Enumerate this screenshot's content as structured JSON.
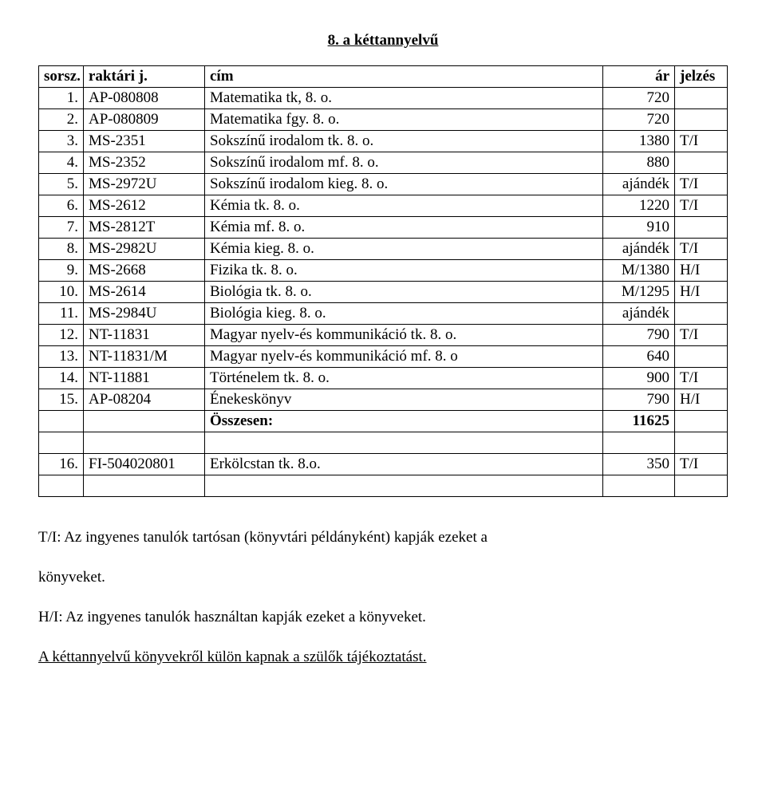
{
  "title": "8. a kéttannyelvű",
  "columns": {
    "sorsz": "sorsz.",
    "raktari": "raktári j.",
    "cim": "cím",
    "ar": "ár",
    "jelzes": "jelzés"
  },
  "rows": [
    {
      "n": "1.",
      "r": "AP-080808",
      "c": "Matematika tk, 8. o.",
      "a": "720",
      "j": ""
    },
    {
      "n": "2.",
      "r": "AP-080809",
      "c": "Matematika fgy. 8. o.",
      "a": "720",
      "j": ""
    },
    {
      "n": "3.",
      "r": "MS-2351",
      "c": "Sokszínű irodalom tk. 8. o.",
      "a": "1380",
      "j": "T/I"
    },
    {
      "n": "4.",
      "r": "MS-2352",
      "c": "Sokszínű irodalom mf. 8. o.",
      "a": "880",
      "j": ""
    },
    {
      "n": "5.",
      "r": "MS-2972U",
      "c": "Sokszínű irodalom kieg. 8. o.",
      "a": "ajándék",
      "j": "T/I"
    },
    {
      "n": "6.",
      "r": "MS-2612",
      "c": "Kémia tk. 8. o.",
      "a": "1220",
      "j": "T/I"
    },
    {
      "n": "7.",
      "r": "MS-2812T",
      "c": "Kémia mf. 8. o.",
      "a": "910",
      "j": ""
    },
    {
      "n": "8.",
      "r": "MS-2982U",
      "c": "Kémia kieg. 8. o.",
      "a": "ajándék",
      "j": "T/I"
    },
    {
      "n": "9.",
      "r": "MS-2668",
      "c": "Fizika tk. 8. o.",
      "a": "M/1380",
      "j": "H/I"
    },
    {
      "n": "10.",
      "r": "MS-2614",
      "c": "Biológia tk. 8. o.",
      "a": "M/1295",
      "j": "H/I"
    },
    {
      "n": "11.",
      "r": "MS-2984U",
      "c": "Biológia kieg. 8. o.",
      "a": "ajándék",
      "j": ""
    },
    {
      "n": "12.",
      "r": "NT-11831",
      "c": "Magyar nyelv-és kommunikáció tk. 8. o.",
      "a": "790",
      "j": "T/I"
    },
    {
      "n": "13.",
      "r": "NT-11831/M",
      "c": "Magyar nyelv-és kommunikáció mf. 8. o",
      "a": "640",
      "j": ""
    },
    {
      "n": "14.",
      "r": "NT-11881",
      "c": "Történelem tk. 8. o.",
      "a": "900",
      "j": "T/I"
    },
    {
      "n": "15.",
      "r": "AP-08204",
      "c": "Énekeskönyv",
      "a": "790",
      "j": "H/I"
    }
  ],
  "summary": {
    "label": "Összesen:",
    "value": "11625"
  },
  "row16": {
    "n": "16.",
    "r": "FI-504020801",
    "c": "Erkölcstan tk. 8.o.",
    "a": "350",
    "j": "T/I"
  },
  "note1a": "T/I: Az ingyenes tanulók tartósan (könyvtári példányként) kapják ezeket a",
  "note1b": "könyveket.",
  "note2": "H/I: Az ingyenes tanulók használtan kapják ezeket a könyveket.",
  "note3": "A kéttannyelvű könyvekről külön kapnak a szülők tájékoztatást."
}
